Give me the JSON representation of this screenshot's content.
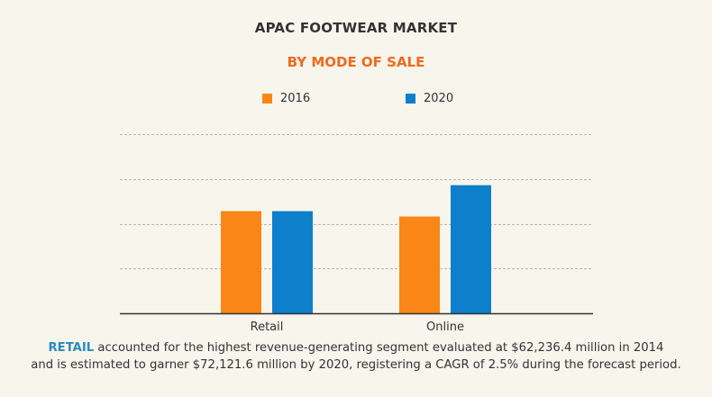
{
  "title": "APAC FOOTWEAR MARKET",
  "subtitle": "BY MODE OF SALE",
  "colors": {
    "series_2016": "#f98616",
    "series_2020": "#0d7fcb",
    "grid": "#b5b5b5",
    "axis": "#333333"
  },
  "chart_data": {
    "type": "bar",
    "title": "APAC FOOTWEAR MARKET",
    "subtitle": "BY MODE OF SALE",
    "categories": [
      "Retail",
      "Online"
    ],
    "series": [
      {
        "name": "2016",
        "values": [
          2.28,
          2.16
        ]
      },
      {
        "name": "2020",
        "values": [
          2.28,
          2.86
        ]
      }
    ],
    "ylim": [
      0,
      4
    ],
    "grid": true,
    "legend": "top-center",
    "y_tick_labels_visible": false
  },
  "caption": {
    "highlight": "RETAIL",
    "line1": " accounted for the highest revenue-generating segment evaluated at $62,236.4 million in 2014",
    "line2": "and is estimated to garner $72,121.6 million by 2020, registering a CAGR of 2.5% during the forecast period."
  }
}
